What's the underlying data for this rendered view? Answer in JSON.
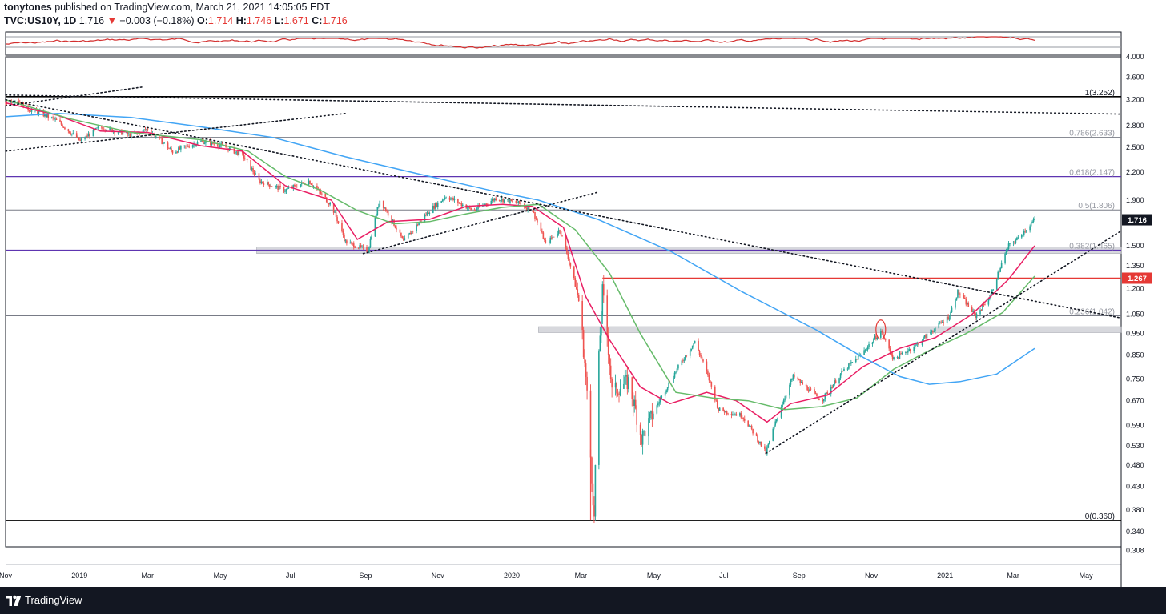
{
  "header": {
    "author": "tonytones",
    "published_text": "published on TradingView.com, March 21, 2021 14:05:05 EDT",
    "symbol": "TVC:US10Y, 1D",
    "last": "1.716",
    "change_arrow": "▼",
    "change": "−0.003 (−0.18%)",
    "open_label": "O:",
    "open": "1.714",
    "high_label": "H:",
    "high": "1.746",
    "low_label": "L:",
    "low": "1.671",
    "close_label": "C:",
    "close": "1.716"
  },
  "footer": {
    "brand": "TradingView",
    "logo_icon": "tradingview-logo-icon"
  },
  "colors": {
    "candle_up": "#26a69a",
    "candle_down": "#ef5350",
    "ma_fast": "#e91e63",
    "ma_mid": "#66bb6a",
    "ma_slow": "#42a5f5",
    "fib_line": "#787b86",
    "fib_purple": "#5e35b1",
    "resistance": "#e53935",
    "indicator": "#d32f2f"
  },
  "chart_data": {
    "type": "candlestick",
    "title": "",
    "scale": "log",
    "y_range": [
      0.283,
      4.0
    ],
    "x_range": [
      "2018-11-01",
      "2021-05-31"
    ],
    "y_ticks": [
      "4.000",
      "3.600",
      "3.200",
      "2.800",
      "2.500",
      "2.200",
      "1.900",
      "1.500",
      "1.350",
      "1.200",
      "1.050",
      "0.950",
      "0.850",
      "0.750",
      "0.670",
      "0.590",
      "0.530",
      "0.480",
      "0.430",
      "0.380",
      "0.340",
      "0.308"
    ],
    "x_ticks": [
      {
        "label": "Nov",
        "date": "2018-11-01"
      },
      {
        "label": "2019",
        "date": "2019-01-01"
      },
      {
        "label": "Mar",
        "date": "2019-03-01"
      },
      {
        "label": "May",
        "date": "2019-05-01"
      },
      {
        "label": "Jul",
        "date": "2019-07-01"
      },
      {
        "label": "Sep",
        "date": "2019-09-01"
      },
      {
        "label": "Nov",
        "date": "2019-11-01"
      },
      {
        "label": "2020",
        "date": "2020-01-01"
      },
      {
        "label": "Mar",
        "date": "2020-03-01"
      },
      {
        "label": "May",
        "date": "2020-05-01"
      },
      {
        "label": "Jul",
        "date": "2020-07-01"
      },
      {
        "label": "Sep",
        "date": "2020-09-01"
      },
      {
        "label": "Nov",
        "date": "2020-11-01"
      },
      {
        "label": "2021",
        "date": "2021-01-01"
      },
      {
        "label": "Mar",
        "date": "2021-03-01"
      },
      {
        "label": "May",
        "date": "2021-05-01"
      }
    ],
    "fib_levels": [
      {
        "label": "1(3.252)",
        "value": 3.252
      },
      {
        "label": "0.786(2.633)",
        "value": 2.633
      },
      {
        "label": "0.618(2.147)",
        "value": 2.147
      },
      {
        "label": "0.5(1.806)",
        "value": 1.806
      },
      {
        "label": "0.382(1.465)",
        "value": 1.465
      },
      {
        "label": "0.236(1.042)",
        "value": 1.042
      },
      {
        "label": "0(0.360)",
        "value": 0.36
      }
    ],
    "price_badges": [
      {
        "label": "1.716",
        "value": 1.716
      },
      {
        "label": "1.267",
        "value": 1.267
      }
    ],
    "price_path": [
      [
        "2018-11-01",
        3.15
      ],
      [
        "2018-11-10",
        3.21
      ],
      [
        "2018-11-20",
        3.05
      ],
      [
        "2018-12-01",
        2.98
      ],
      [
        "2018-12-15",
        2.86
      ],
      [
        "2019-01-03",
        2.58
      ],
      [
        "2019-01-20",
        2.78
      ],
      [
        "2019-02-15",
        2.66
      ],
      [
        "2019-03-01",
        2.75
      ],
      [
        "2019-03-22",
        2.44
      ],
      [
        "2019-04-15",
        2.58
      ],
      [
        "2019-05-01",
        2.53
      ],
      [
        "2019-05-20",
        2.4
      ],
      [
        "2019-06-03",
        2.1
      ],
      [
        "2019-06-25",
        2.0
      ],
      [
        "2019-07-15",
        2.1
      ],
      [
        "2019-08-03",
        1.85
      ],
      [
        "2019-08-15",
        1.53
      ],
      [
        "2019-09-03",
        1.46
      ],
      [
        "2019-09-13",
        1.9
      ],
      [
        "2019-10-03",
        1.53
      ],
      [
        "2019-10-25",
        1.8
      ],
      [
        "2019-11-08",
        1.94
      ],
      [
        "2019-12-01",
        1.8
      ],
      [
        "2019-12-20",
        1.92
      ],
      [
        "2020-01-08",
        1.87
      ],
      [
        "2020-01-20",
        1.8
      ],
      [
        "2020-01-31",
        1.51
      ],
      [
        "2020-02-12",
        1.63
      ],
      [
        "2020-02-28",
        1.13
      ],
      [
        "2020-03-09",
        0.5
      ],
      [
        "2020-03-12",
        0.36
      ],
      [
        "2020-03-19",
        1.18
      ],
      [
        "2020-03-27",
        0.7
      ],
      [
        "2020-04-10",
        0.74
      ],
      [
        "2020-04-21",
        0.55
      ],
      [
        "2020-05-05",
        0.66
      ],
      [
        "2020-06-05",
        0.91
      ],
      [
        "2020-06-25",
        0.64
      ],
      [
        "2020-07-15",
        0.62
      ],
      [
        "2020-08-04",
        0.51
      ],
      [
        "2020-08-27",
        0.76
      ],
      [
        "2020-09-20",
        0.67
      ],
      [
        "2020-10-08",
        0.78
      ],
      [
        "2020-10-23",
        0.85
      ],
      [
        "2020-11-09",
        0.96
      ],
      [
        "2020-11-20",
        0.83
      ],
      [
        "2020-12-10",
        0.9
      ],
      [
        "2021-01-06",
        1.04
      ],
      [
        "2021-01-13",
        1.18
      ],
      [
        "2021-01-28",
        1.04
      ],
      [
        "2021-02-10",
        1.16
      ],
      [
        "2021-02-25",
        1.5
      ],
      [
        "2021-03-04",
        1.55
      ],
      [
        "2021-03-19",
        1.716
      ]
    ],
    "series": [
      {
        "name": "",
        "color_key": "ma_fast",
        "values": [
          [
            "2018-11-01",
            3.15
          ],
          [
            "2018-12-15",
            2.95
          ],
          [
            "2019-01-20",
            2.72
          ],
          [
            "2019-03-01",
            2.7
          ],
          [
            "2019-04-15",
            2.52
          ],
          [
            "2019-05-20",
            2.45
          ],
          [
            "2019-06-25",
            2.05
          ],
          [
            "2019-08-03",
            1.9
          ],
          [
            "2019-08-25",
            1.55
          ],
          [
            "2019-09-20",
            1.7
          ],
          [
            "2019-10-25",
            1.72
          ],
          [
            "2019-11-25",
            1.84
          ],
          [
            "2019-12-25",
            1.86
          ],
          [
            "2020-01-20",
            1.84
          ],
          [
            "2020-02-15",
            1.65
          ],
          [
            "2020-03-05",
            1.15
          ],
          [
            "2020-03-25",
            0.92
          ],
          [
            "2020-04-20",
            0.72
          ],
          [
            "2020-05-15",
            0.66
          ],
          [
            "2020-06-15",
            0.7
          ],
          [
            "2020-07-10",
            0.67
          ],
          [
            "2020-08-05",
            0.6
          ],
          [
            "2020-08-25",
            0.66
          ],
          [
            "2020-09-25",
            0.69
          ],
          [
            "2020-10-25",
            0.8
          ],
          [
            "2020-11-25",
            0.88
          ],
          [
            "2020-12-25",
            0.93
          ],
          [
            "2021-01-25",
            1.05
          ],
          [
            "2021-02-25",
            1.26
          ],
          [
            "2021-03-19",
            1.5
          ]
        ]
      },
      {
        "name": "",
        "color_key": "ma_mid",
        "values": [
          [
            "2018-11-01",
            3.2
          ],
          [
            "2018-12-25",
            2.9
          ],
          [
            "2019-02-15",
            2.7
          ],
          [
            "2019-04-15",
            2.6
          ],
          [
            "2019-05-25",
            2.45
          ],
          [
            "2019-06-25",
            2.15
          ],
          [
            "2019-07-25",
            2.0
          ],
          [
            "2019-08-25",
            1.8
          ],
          [
            "2019-09-25",
            1.68
          ],
          [
            "2019-10-25",
            1.7
          ],
          [
            "2019-11-25",
            1.77
          ],
          [
            "2019-12-25",
            1.83
          ],
          [
            "2020-01-25",
            1.86
          ],
          [
            "2020-02-25",
            1.63
          ],
          [
            "2020-03-25",
            1.3
          ],
          [
            "2020-04-20",
            0.95
          ],
          [
            "2020-05-20",
            0.7
          ],
          [
            "2020-06-20",
            0.68
          ],
          [
            "2020-07-20",
            0.67
          ],
          [
            "2020-08-20",
            0.64
          ],
          [
            "2020-09-20",
            0.65
          ],
          [
            "2020-10-20",
            0.68
          ],
          [
            "2020-11-20",
            0.79
          ],
          [
            "2020-12-20",
            0.87
          ],
          [
            "2021-01-20",
            0.95
          ],
          [
            "2021-02-20",
            1.06
          ],
          [
            "2021-03-19",
            1.28
          ]
        ]
      },
      {
        "name": "",
        "color_key": "ma_slow",
        "values": [
          [
            "2018-11-01",
            2.93
          ],
          [
            "2018-12-15",
            2.98
          ],
          [
            "2019-02-15",
            2.92
          ],
          [
            "2019-04-15",
            2.78
          ],
          [
            "2019-06-15",
            2.63
          ],
          [
            "2019-08-15",
            2.38
          ],
          [
            "2019-10-15",
            2.18
          ],
          [
            "2019-12-15",
            2.0
          ],
          [
            "2020-01-25",
            1.9
          ],
          [
            "2020-03-15",
            1.72
          ],
          [
            "2020-05-15",
            1.46
          ],
          [
            "2020-07-15",
            1.18
          ],
          [
            "2020-09-15",
            0.97
          ],
          [
            "2020-10-25",
            0.84
          ],
          [
            "2020-11-25",
            0.76
          ],
          [
            "2020-12-20",
            0.73
          ],
          [
            "2021-01-15",
            0.74
          ],
          [
            "2021-02-15",
            0.77
          ],
          [
            "2021-03-19",
            0.88
          ]
        ]
      }
    ],
    "trendlines": [
      {
        "style": "dotted",
        "from": [
          "2018-11-01",
          3.28
        ],
        "to": [
          "2021-05-31",
          2.97
        ]
      },
      {
        "style": "dotted",
        "from": [
          "2018-11-01",
          3.2
        ],
        "to": [
          "2021-05-31",
          1.03
        ]
      },
      {
        "style": "dotted",
        "from": [
          "2018-11-01",
          2.45
        ],
        "to": [
          "2019-08-15",
          2.98
        ]
      },
      {
        "style": "dotted",
        "from": [
          "2018-11-01",
          3.1
        ],
        "to": [
          "2019-02-25",
          3.42
        ]
      },
      {
        "style": "dotted",
        "from": [
          "2019-08-30",
          1.44
        ],
        "to": [
          "2020-03-15",
          1.98
        ]
      },
      {
        "style": "dotted",
        "from": [
          "2020-08-04",
          0.51
        ],
        "to": [
          "2021-05-31",
          1.62
        ]
      }
    ],
    "zones": [
      {
        "from": "2019-06-01",
        "to": "2021-05-31",
        "low": 1.44,
        "high": 1.49
      },
      {
        "from": "2020-01-25",
        "to": "2021-05-31",
        "low": 0.955,
        "high": 0.985
      }
    ],
    "resistance": {
      "from": "2020-03-19",
      "to": "2021-05-31",
      "value": 1.267
    },
    "highlight": {
      "date": "2020-11-09",
      "value": 0.97
    }
  }
}
